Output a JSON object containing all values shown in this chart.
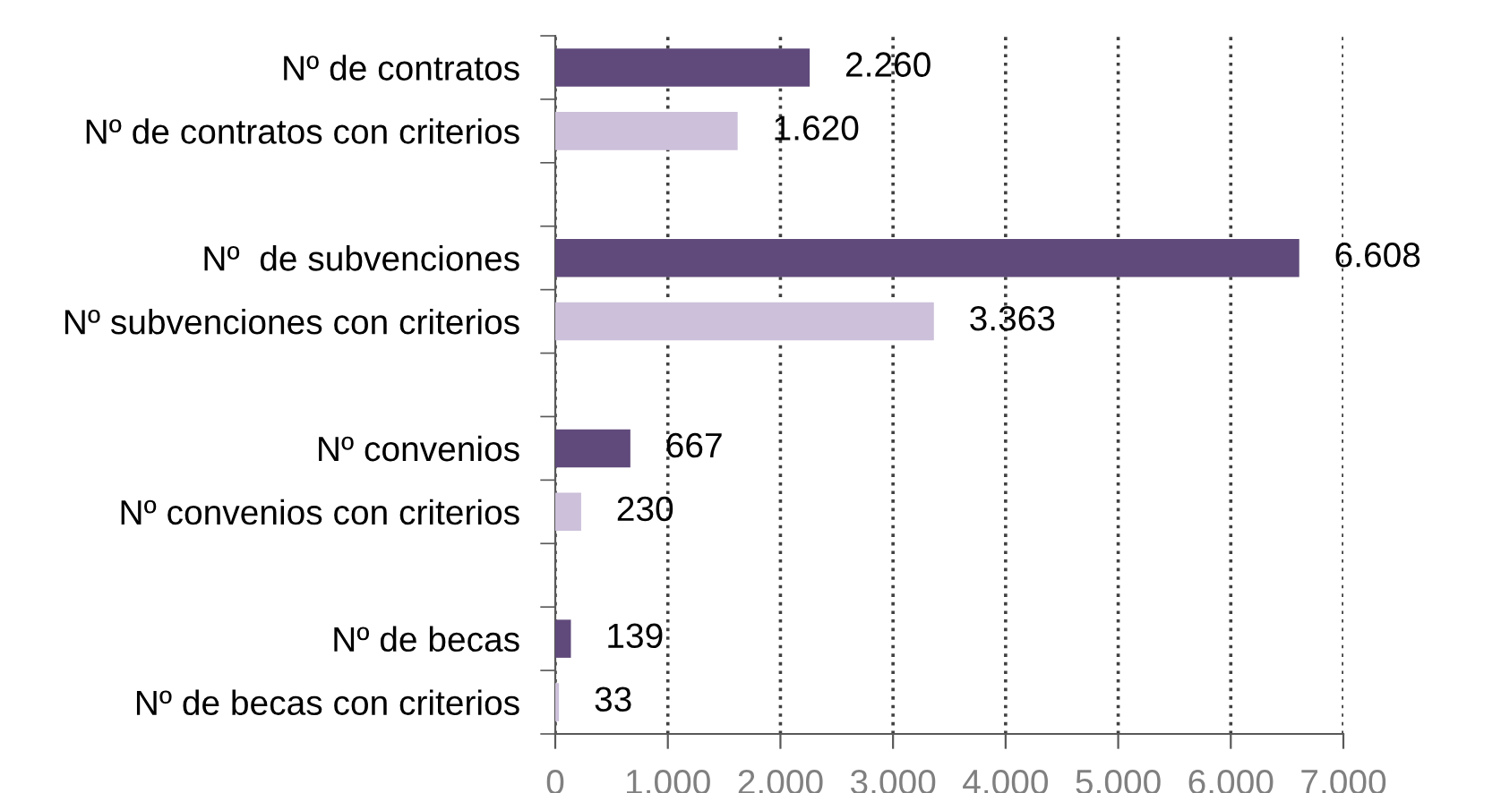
{
  "chart_data": {
    "type": "bar",
    "orientation": "horizontal",
    "categories": [
      "Nº de contratos",
      "Nº de contratos con criterios",
      null,
      "Nº  de subvenciones",
      "Nº subvenciones con criterios",
      null,
      "Nº convenios",
      "Nº convenios con criterios",
      null,
      "Nº de becas",
      "Nº de becas con criterios"
    ],
    "values": [
      2260,
      1620,
      null,
      6608,
      3363,
      null,
      667,
      230,
      null,
      139,
      33
    ],
    "colors": [
      "#604a7b",
      "#ccc0da",
      null,
      "#604a7b",
      "#ccc0da",
      null,
      "#604a7b",
      "#ccc0da",
      null,
      "#604a7b",
      "#ccc0da"
    ],
    "value_labels": [
      "2.260",
      "1.620",
      null,
      "6.608",
      "3.363",
      null,
      "667",
      "230",
      null,
      "139",
      "33"
    ],
    "xlim": [
      0,
      7000
    ],
    "xticks": [
      0,
      {
        "value": 1000,
        "label": "1.000"
      },
      {
        "value": 2000,
        "label": "2.000"
      },
      {
        "value": 3000,
        "label": "3.000"
      },
      {
        "value": 4000,
        "label": "4.000"
      },
      {
        "value": 5000,
        "label": "5.000"
      },
      {
        "value": 6000,
        "label": "6.000"
      },
      {
        "value": 7000,
        "label": "7.000"
      }
    ],
    "grid": "x",
    "legend": false
  }
}
